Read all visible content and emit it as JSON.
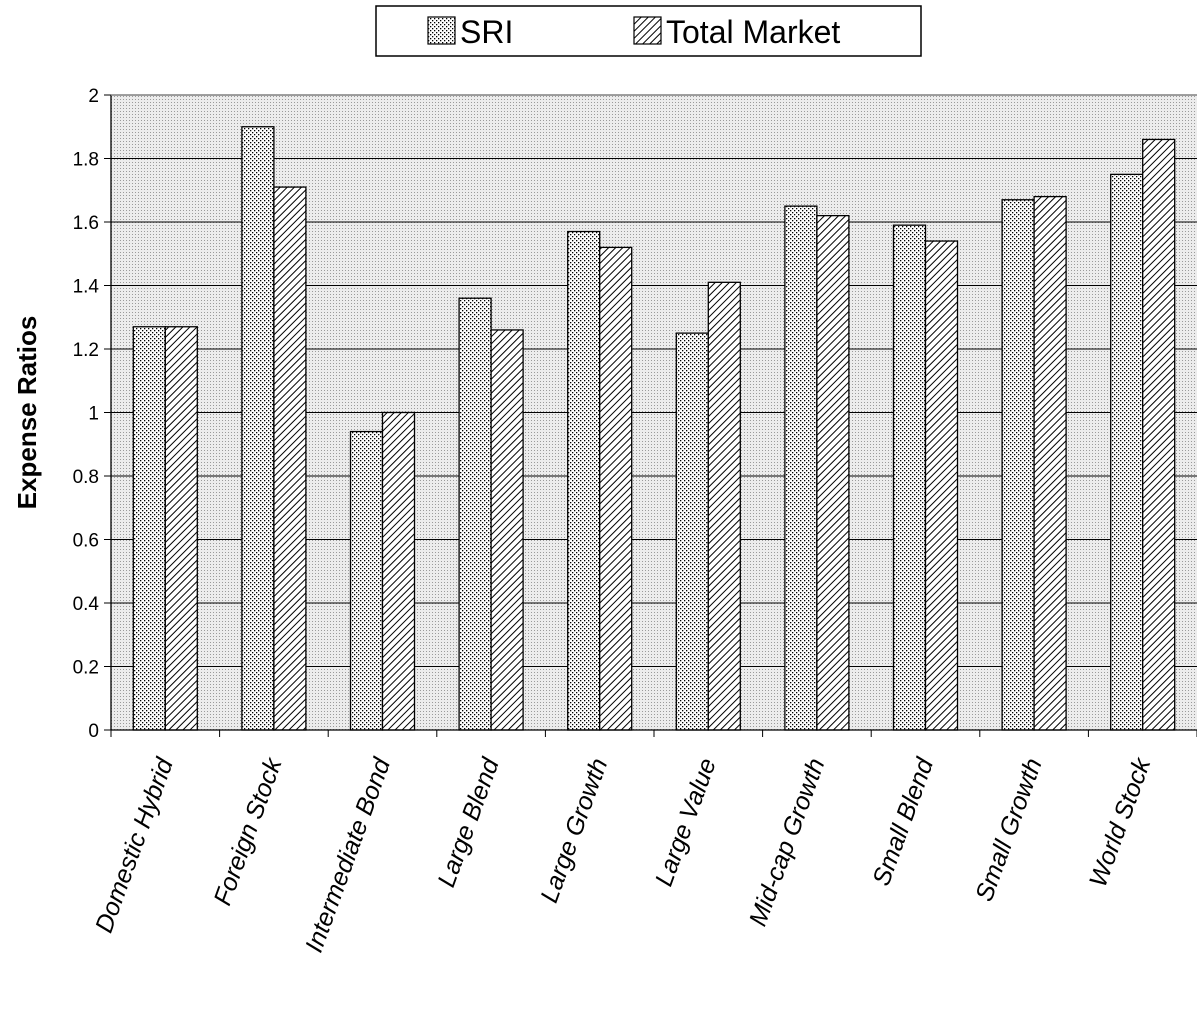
{
  "chart_data": {
    "type": "bar",
    "categories": [
      "Domestic Hybrid",
      "Foreign Stock",
      "Intermediate Bond",
      "Large Blend",
      "Large Growth",
      "Large Value",
      "Mid-cap Growth",
      "Small Blend",
      "Small Growth",
      "World Stock"
    ],
    "series": [
      {
        "name": "SRI",
        "values": [
          1.27,
          1.9,
          0.94,
          1.36,
          1.57,
          1.25,
          1.65,
          1.59,
          1.67,
          1.75
        ]
      },
      {
        "name": "Total Market",
        "values": [
          1.27,
          1.71,
          1.0,
          1.26,
          1.52,
          1.41,
          1.62,
          1.54,
          1.68,
          1.86
        ]
      }
    ],
    "title": "",
    "xlabel": "",
    "ylabel": "Expense Ratios",
    "ylim": [
      0,
      2
    ],
    "yticks": [
      "0",
      "0.2",
      "0.4",
      "0.6",
      "0.8",
      "1",
      "1.2",
      "1.4",
      "1.6",
      "1.8",
      "2"
    ],
    "grid": true,
    "legend": "top-center",
    "colors": {
      "plot_background": "#e4e4e4",
      "grid": "#000000",
      "bar_fill": "#ffffff",
      "bar_stroke": "#000000"
    }
  }
}
